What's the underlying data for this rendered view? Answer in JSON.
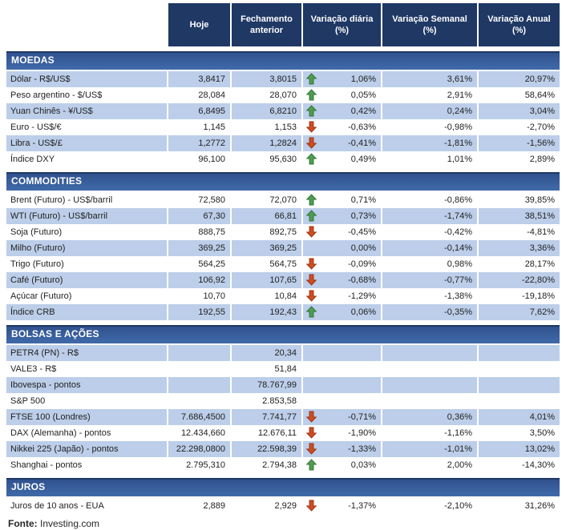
{
  "header": {
    "columns": [
      "Hoje",
      "Fechamento anterior",
      "Variação diária (%)",
      "Variação Semanal (%)",
      "Variação Anual (%)"
    ]
  },
  "sections": [
    {
      "title": "MOEDAS",
      "first_shade": "light",
      "rows": [
        {
          "label": "Dólar - R$/US$",
          "hoje": "3,8417",
          "fechamento": "3,8015",
          "arrow": "up",
          "diaria": "1,06%",
          "semanal": "3,61%",
          "anual": "20,97%"
        },
        {
          "label": "Peso argentino - $/US$",
          "hoje": "28,084",
          "fechamento": "28,070",
          "arrow": "up",
          "diaria": "0,05%",
          "semanal": "2,91%",
          "anual": "58,64%"
        },
        {
          "label": "Yuan Chinês - ¥/US$",
          "hoje": "6,8495",
          "fechamento": "6,8210",
          "arrow": "up",
          "diaria": "0,42%",
          "semanal": "0,24%",
          "anual": "3,04%"
        },
        {
          "label": "Euro - US$/€",
          "hoje": "1,145",
          "fechamento": "1,153",
          "arrow": "down",
          "diaria": "-0,63%",
          "semanal": "-0,98%",
          "anual": "-2,70%"
        },
        {
          "label": "Libra - US$/£",
          "hoje": "1,2772",
          "fechamento": "1,2824",
          "arrow": "down",
          "diaria": "-0,41%",
          "semanal": "-1,81%",
          "anual": "-1,56%"
        },
        {
          "label": "Índice DXY",
          "hoje": "96,100",
          "fechamento": "95,630",
          "arrow": "up",
          "diaria": "0,49%",
          "semanal": "1,01%",
          "anual": "2,89%"
        }
      ]
    },
    {
      "title": "COMMODITIES",
      "first_shade": "white",
      "rows": [
        {
          "label": "Brent (Futuro) - US$/barril",
          "hoje": "72,580",
          "fechamento": "72,070",
          "arrow": "up",
          "diaria": "0,71%",
          "semanal": "-0,86%",
          "anual": "39,85%"
        },
        {
          "label": "WTI (Futuro) - US$/barril",
          "hoje": "67,30",
          "fechamento": "66,81",
          "arrow": "up",
          "diaria": "0,73%",
          "semanal": "-1,74%",
          "anual": "38,51%"
        },
        {
          "label": "Soja (Futuro)",
          "hoje": "888,75",
          "fechamento": "892,75",
          "arrow": "down",
          "diaria": "-0,45%",
          "semanal": "-0,42%",
          "anual": "-4,81%"
        },
        {
          "label": "Milho (Futuro)",
          "hoje": "369,25",
          "fechamento": "369,25",
          "arrow": "none",
          "diaria": "0,00%",
          "semanal": "-0,14%",
          "anual": "3,36%"
        },
        {
          "label": "Trigo (Futuro)",
          "hoje": "564,25",
          "fechamento": "564,75",
          "arrow": "down",
          "diaria": "-0,09%",
          "semanal": "0,98%",
          "anual": "28,17%"
        },
        {
          "label": "Café (Futuro)",
          "hoje": "106,92",
          "fechamento": "107,65",
          "arrow": "down",
          "diaria": "-0,68%",
          "semanal": "-0,77%",
          "anual": "-22,80%"
        },
        {
          "label": "Açúcar (Futuro)",
          "hoje": "10,70",
          "fechamento": "10,84",
          "arrow": "down",
          "diaria": "-1,29%",
          "semanal": "-1,38%",
          "anual": "-19,18%"
        },
        {
          "label": "Índice CRB",
          "hoje": "192,55",
          "fechamento": "192,43",
          "arrow": "up",
          "diaria": "0,06%",
          "semanal": "-0,35%",
          "anual": "7,62%"
        }
      ]
    },
    {
      "title": "BOLSAS E AÇÕES",
      "first_shade": "light",
      "rows": [
        {
          "label": "PETR4 (PN) - R$",
          "hoje": "",
          "fechamento": "20,34",
          "arrow": "none",
          "diaria": "",
          "semanal": "",
          "anual": ""
        },
        {
          "label": "VALE3 - R$",
          "hoje": "",
          "fechamento": "51,84",
          "arrow": "none",
          "diaria": "",
          "semanal": "",
          "anual": ""
        },
        {
          "label": "Ibovespa - pontos",
          "hoje": "",
          "fechamento": "78.767,99",
          "arrow": "none",
          "diaria": "",
          "semanal": "",
          "anual": ""
        },
        {
          "label": "S&P 500",
          "hoje": "",
          "fechamento": "2.853,58",
          "arrow": "none",
          "diaria": "",
          "semanal": "",
          "anual": ""
        },
        {
          "label": "FTSE 100 (Londres)",
          "hoje": "7.686,4500",
          "fechamento": "7.741,77",
          "arrow": "down",
          "diaria": "-0,71%",
          "semanal": "0,36%",
          "anual": "4,01%"
        },
        {
          "label": "DAX (Alemanha) - pontos",
          "hoje": "12.434,660",
          "fechamento": "12.676,11",
          "arrow": "down",
          "diaria": "-1,90%",
          "semanal": "-1,16%",
          "anual": "3,50%"
        },
        {
          "label": "Nikkei 225 (Japão) - pontos",
          "hoje": "22.298,0800",
          "fechamento": "22.598,39",
          "arrow": "down",
          "diaria": "-1,33%",
          "semanal": "-1,01%",
          "anual": "13,02%"
        },
        {
          "label": "Shanghai - pontos",
          "hoje": "2.795,310",
          "fechamento": "2.794,38",
          "arrow": "up",
          "diaria": "0,03%",
          "semanal": "2,00%",
          "anual": "-14,30%"
        }
      ]
    },
    {
      "title": "JUROS",
      "first_shade": "white",
      "rows": [
        {
          "label": "Juros de 10 anos - EUA",
          "hoje": "2,889",
          "fechamento": "2,929",
          "arrow": "down",
          "diaria": "-1,37%",
          "semanal": "-2,10%",
          "anual": "31,26%"
        }
      ]
    }
  ],
  "footer": {
    "label_bold": "Fonte:",
    "text": " Investing.com"
  },
  "colors": {
    "header_bg": "#1F3864",
    "band_top": "#30528E",
    "band_bottom": "#406AA9",
    "row_light": "#BCCEE9",
    "arrow_up_fill": "#4E9D50",
    "arrow_up_stroke": "#2F6B33",
    "arrow_down_fill": "#CF4B22",
    "arrow_down_stroke": "#93300F"
  },
  "icons": {
    "up": "arrow-up-icon",
    "down": "arrow-down-icon"
  }
}
